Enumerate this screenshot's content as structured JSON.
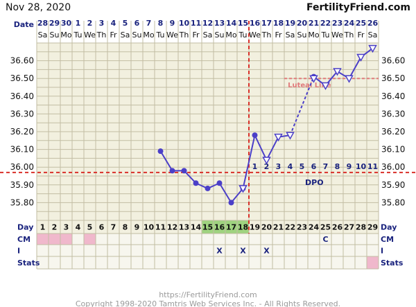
{
  "header": {
    "date": "Nov 28, 2020",
    "brand": "FertilityFriend.com"
  },
  "row_labels": {
    "date": "Date",
    "day": "Day",
    "cm": "CM",
    "intercourse": "I",
    "stats": "Stats"
  },
  "colors": {
    "background": "#f2f0df",
    "grid": "#c2bda3",
    "temp_line": "#4b3fc8",
    "coverline": "#d9302a",
    "luteal_line": "#e07b7b",
    "fertile_highlight": "#9fd37f",
    "cm_pink": "#f0b8cc"
  },
  "chart_data": {
    "type": "line",
    "title": "",
    "xlabel": "Day",
    "ylabel": "",
    "ylim": [
      35.7,
      36.7
    ],
    "yticks": [
      35.8,
      35.9,
      36.0,
      36.1,
      36.2,
      36.3,
      36.4,
      36.5,
      36.6
    ],
    "ytick_labels": [
      "35.80",
      "35.90",
      "36.00",
      "36.10",
      "36.20",
      "36.30",
      "36.40",
      "36.50",
      "36.60"
    ],
    "grid": true,
    "dates": [
      28,
      29,
      30,
      1,
      2,
      3,
      4,
      5,
      6,
      7,
      8,
      9,
      10,
      11,
      12,
      13,
      14,
      15,
      16,
      17,
      18,
      19,
      20,
      21,
      22,
      23,
      24,
      25,
      26
    ],
    "weekdays": [
      "Sa",
      "Su",
      "Mo",
      "Tu",
      "We",
      "Th",
      "Fr",
      "Sa",
      "Su",
      "Mo",
      "Tu",
      "We",
      "Th",
      "Fr",
      "Sa",
      "Su",
      "Mo",
      "Tu",
      "We",
      "Th",
      "Fr",
      "Sa",
      "Su",
      "Mo",
      "Tu",
      "We",
      "Th",
      "Fr",
      "Sa"
    ],
    "cycle_days": [
      1,
      2,
      3,
      4,
      5,
      6,
      7,
      8,
      9,
      10,
      11,
      12,
      13,
      14,
      15,
      16,
      17,
      18,
      19,
      20,
      21,
      22,
      23,
      24,
      25,
      26,
      27,
      28,
      29
    ],
    "series": [
      {
        "marker": "circle",
        "values": [
          null,
          null,
          null,
          null,
          null,
          null,
          null,
          null,
          null,
          null,
          36.09,
          35.98,
          35.98,
          35.91,
          35.88,
          35.91,
          35.8,
          35.88,
          36.18,
          null,
          null,
          null,
          null,
          36.51,
          null,
          null,
          null,
          null,
          null
        ]
      },
      {
        "marker": "triangle-down",
        "values": [
          null,
          null,
          null,
          null,
          null,
          null,
          null,
          null,
          null,
          null,
          null,
          null,
          null,
          null,
          null,
          null,
          null,
          35.88,
          null,
          36.04,
          36.17,
          36.18,
          null,
          36.5,
          36.46,
          36.54,
          36.5,
          36.62,
          36.67
        ]
      }
    ],
    "coverline": 35.97,
    "ovulation_day": 18,
    "fertile_days": [
      15,
      16,
      17,
      18
    ],
    "luteal_line": {
      "value": 36.5,
      "label": "Luteal Line",
      "from_day": 22,
      "to_day": 29
    },
    "dpo_days": [
      19,
      20,
      21,
      22,
      23,
      24,
      25,
      26,
      27,
      28,
      29
    ],
    "dpo_numbers": [
      1,
      2,
      3,
      4,
      5,
      6,
      7,
      8,
      9,
      10,
      11
    ],
    "dpo_label": "DPO",
    "cm_pink_days": [
      1,
      2,
      3,
      5
    ],
    "cm_marks": [
      {
        "day": 25,
        "text": "C"
      }
    ],
    "intercourse_marks": [
      {
        "day": 16,
        "text": "X"
      },
      {
        "day": 18,
        "text": "X"
      },
      {
        "day": 20,
        "text": "X"
      }
    ],
    "stats_pink_days": [
      29
    ]
  },
  "footer": {
    "url": "https://FertilityFriend.com",
    "copyright": "Copyright 1998-2020 Tamtris Web Services Inc. - All Rights Reserved."
  }
}
